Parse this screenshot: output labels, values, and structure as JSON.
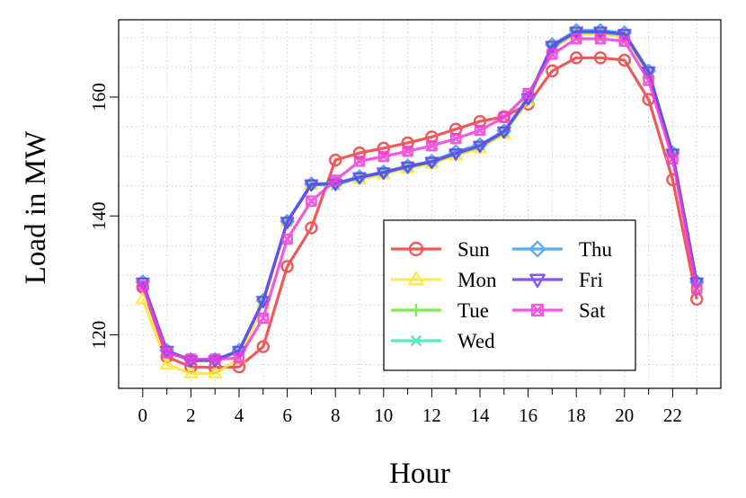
{
  "chart_data": {
    "type": "line",
    "title": "",
    "xlabel": "Hour",
    "ylabel": "Load in MW",
    "x": [
      0,
      1,
      2,
      3,
      4,
      5,
      6,
      7,
      8,
      9,
      10,
      11,
      12,
      13,
      14,
      15,
      16,
      17,
      18,
      19,
      20,
      21,
      22,
      23
    ],
    "xlim": [
      -1,
      24
    ],
    "ylim": [
      111,
      173
    ],
    "x_ticks": [
      0,
      2,
      4,
      6,
      8,
      10,
      12,
      14,
      16,
      18,
      20,
      22
    ],
    "x_minor_ticks": [
      1,
      3,
      5,
      7,
      9,
      11,
      13,
      15,
      17,
      19,
      21,
      23
    ],
    "y_ticks": [
      120,
      140,
      160
    ],
    "grid": true,
    "legend_position": "center-right",
    "legend_columns": 2,
    "series": [
      {
        "name": "Sun",
        "color": "#f03c3c",
        "marker": "circle",
        "values": [
          128.0,
          116.3,
          114.6,
          114.5,
          114.6,
          118.0,
          131.5,
          138.0,
          149.4,
          150.6,
          151.4,
          152.3,
          153.3,
          154.6,
          155.9,
          156.7,
          158.8,
          164.4,
          166.6,
          166.6,
          166.2,
          159.6,
          146.1,
          126.0
        ]
      },
      {
        "name": "Mon",
        "color": "#ffe633",
        "marker": "triangle-up",
        "values": [
          126.0,
          115.0,
          113.5,
          113.5,
          116.0,
          125.2,
          139.0,
          145.2,
          145.6,
          146.2,
          147.0,
          148.0,
          148.8,
          150.2,
          151.4,
          153.8,
          159.4,
          168.2,
          170.6,
          170.6,
          170.2,
          163.9,
          150.2,
          128.4
        ]
      },
      {
        "name": "Tue",
        "color": "#6ae838",
        "marker": "plus",
        "values": [
          128.7,
          117.2,
          115.6,
          115.6,
          117.2,
          125.6,
          139.0,
          145.3,
          145.2,
          146.4,
          147.2,
          148.2,
          149.0,
          150.4,
          151.6,
          154.0,
          159.6,
          168.4,
          170.8,
          170.8,
          170.4,
          164.1,
          150.4,
          128.6
        ]
      },
      {
        "name": "Wed",
        "color": "#3ce8b4",
        "marker": "x",
        "values": [
          128.7,
          117.2,
          115.7,
          115.7,
          117.3,
          125.7,
          139.0,
          145.3,
          145.1,
          146.5,
          147.3,
          148.3,
          149.1,
          150.6,
          151.8,
          154.1,
          159.7,
          168.5,
          170.9,
          170.9,
          170.5,
          164.2,
          150.5,
          128.7
        ]
      },
      {
        "name": "Thu",
        "color": "#3ca0f0",
        "marker": "diamond",
        "values": [
          128.9,
          117.4,
          115.8,
          115.8,
          117.4,
          125.8,
          139.1,
          145.4,
          145.5,
          146.6,
          147.4,
          148.4,
          149.2,
          150.8,
          152.0,
          154.3,
          159.9,
          168.8,
          171.2,
          171.2,
          170.8,
          164.4,
          150.6,
          128.9
        ]
      },
      {
        "name": "Fri",
        "color": "#6e3cf0",
        "marker": "triangle-down",
        "values": [
          128.8,
          117.3,
          115.7,
          115.7,
          117.3,
          125.7,
          139.0,
          145.3,
          145.4,
          146.5,
          147.3,
          148.3,
          149.1,
          150.5,
          151.8,
          154.2,
          159.8,
          168.6,
          171.0,
          171.0,
          170.6,
          164.3,
          150.5,
          128.8
        ]
      },
      {
        "name": "Sat",
        "color": "#f03cdc",
        "marker": "square-x",
        "values": [
          128.2,
          117.0,
          115.9,
          115.9,
          116.1,
          122.8,
          136.1,
          142.5,
          146.0,
          149.2,
          150.0,
          150.9,
          151.8,
          153.0,
          154.4,
          156.6,
          160.6,
          167.2,
          169.8,
          169.8,
          169.4,
          162.8,
          149.6,
          127.8
        ]
      }
    ]
  }
}
